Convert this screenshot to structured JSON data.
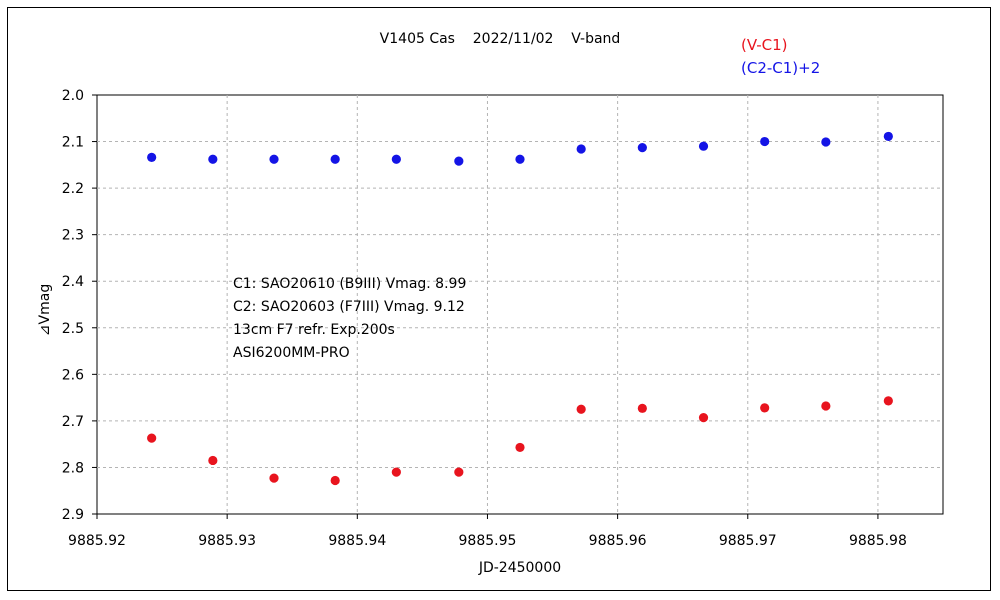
{
  "chart_data": {
    "type": "scatter",
    "title": "V1405 Cas    2022/11/02    V-band",
    "xlabel": "JD-2450000",
    "ylabel": "⊿Vmag",
    "xlim": [
      9885.92,
      9885.985
    ],
    "ylim": [
      2.9,
      2.0
    ],
    "y_inverted": true,
    "grid": true,
    "legend_position": "top-right",
    "x_ticks": [
      "9885.92",
      "9885.93",
      "9885.94",
      "9885.95",
      "9885.96",
      "9885.97",
      "9885.98"
    ],
    "x_tick_values": [
      9885.92,
      9885.93,
      9885.94,
      9885.95,
      9885.96,
      9885.97,
      9885.98
    ],
    "y_ticks": [
      "2.0",
      "2.1",
      "2.2",
      "2.3",
      "2.4",
      "2.5",
      "2.6",
      "2.7",
      "2.8",
      "2.9"
    ],
    "y_tick_values": [
      2.0,
      2.1,
      2.2,
      2.3,
      2.4,
      2.5,
      2.6,
      2.7,
      2.8,
      2.9
    ],
    "series": [
      {
        "name": "(V-C1)",
        "color": "#e8141e",
        "x": [
          9885.9242,
          9885.9289,
          9885.9336,
          9885.9383,
          9885.943,
          9885.9478,
          9885.9525,
          9885.9572,
          9885.9619,
          9885.9666,
          9885.9713,
          9885.976,
          9885.9808
        ],
        "y": [
          2.737,
          2.785,
          2.823,
          2.828,
          2.81,
          2.81,
          2.757,
          2.675,
          2.673,
          2.693,
          2.672,
          2.668,
          2.657
        ]
      },
      {
        "name": "(C2-C1)+2",
        "color": "#1414e6",
        "x": [
          9885.9242,
          9885.9289,
          9885.9336,
          9885.9383,
          9885.943,
          9885.9478,
          9885.9525,
          9885.9572,
          9885.9619,
          9885.9666,
          9885.9713,
          9885.976,
          9885.9808
        ],
        "y": [
          2.134,
          2.138,
          2.138,
          2.138,
          2.138,
          2.142,
          2.138,
          2.116,
          2.113,
          2.11,
          2.1,
          2.101,
          2.089
        ]
      }
    ],
    "annotations": [
      "C1: SAO20610 (B9III) Vmag. 8.99",
      "C2: SAO20603 (F7III) Vmag. 9.12",
      "13cm F7 refr.  Exp.200s",
      "ASI6200MM-PRO"
    ]
  }
}
